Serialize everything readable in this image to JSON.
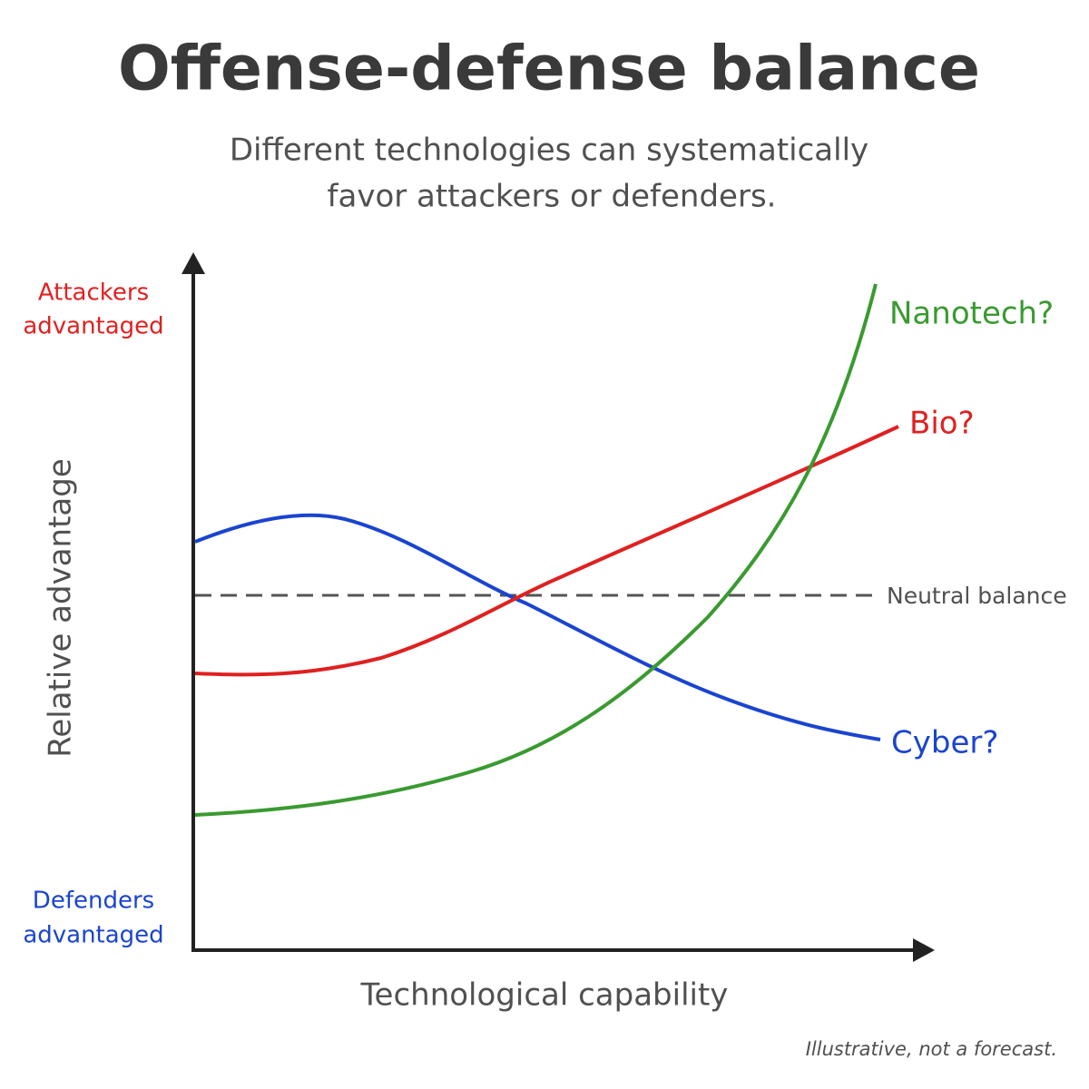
{
  "header": {
    "title": "Offense-defense balance",
    "subtitle": [
      "Different technologies can systematically",
      "favor attackers or defenders."
    ]
  },
  "axes": {
    "y_label": "Relative advantage",
    "x_label": "Technological capability",
    "top_label": [
      "Attackers",
      "advantaged"
    ],
    "bottom_label": [
      "Defenders",
      "advantaged"
    ]
  },
  "reference": {
    "label": "Neutral balance"
  },
  "curves": [
    {
      "label": "Nanotech?"
    },
    {
      "label": "Bio?"
    },
    {
      "label": "Cyber?"
    }
  ],
  "footnote": "Illustrative, not a forecast."
}
